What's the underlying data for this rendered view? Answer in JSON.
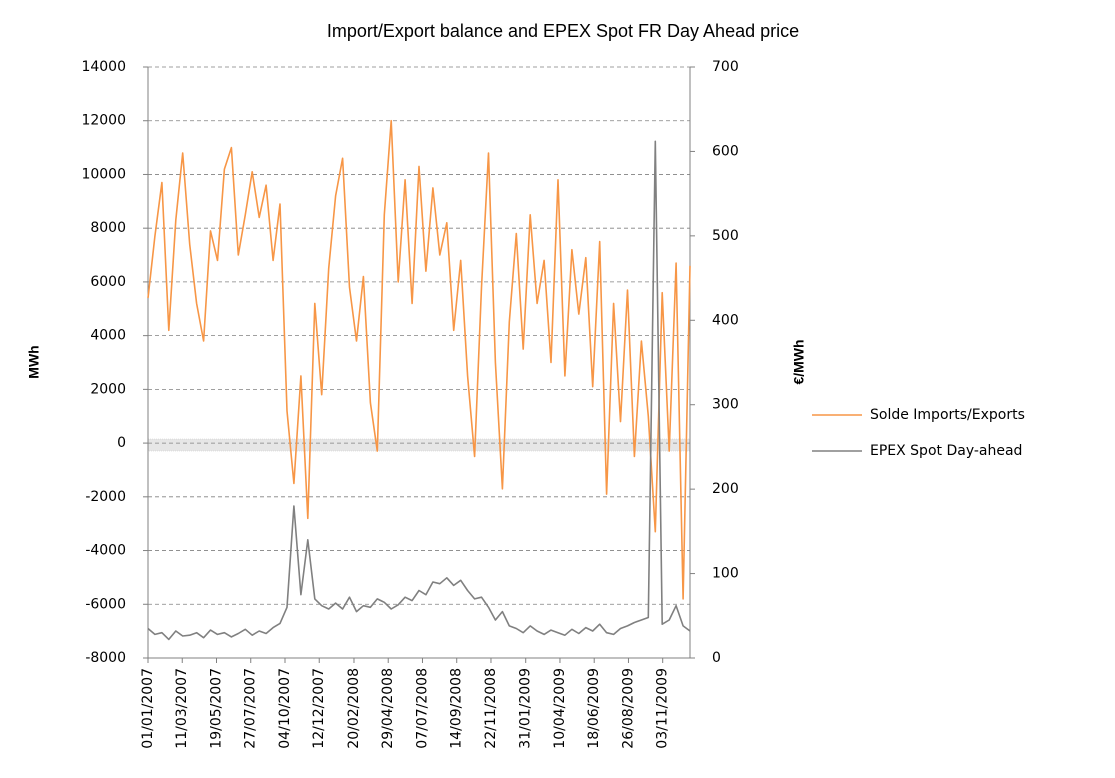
{
  "chart_data": {
    "type": "line",
    "title": "Import/Export balance and EPEX Spot FR Day Ahead price",
    "y_label": "MWh",
    "y2_label": "€/MWh",
    "x": [
      "01/01/2007",
      "15/01/2007",
      "29/01/2007",
      "12/02/2007",
      "26/02/2007",
      "12/03/2007",
      "26/03/2007",
      "09/04/2007",
      "23/04/2007",
      "07/05/2007",
      "21/05/2007",
      "04/06/2007",
      "18/06/2007",
      "02/07/2007",
      "16/07/2007",
      "30/07/2007",
      "13/08/2007",
      "27/08/2007",
      "10/09/2007",
      "24/09/2007",
      "08/10/2007",
      "22/10/2007",
      "05/11/2007",
      "19/11/2007",
      "03/12/2007",
      "17/12/2007",
      "31/12/2007",
      "14/01/2008",
      "28/01/2008",
      "11/02/2008",
      "25/02/2008",
      "10/03/2008",
      "24/03/2008",
      "07/04/2008",
      "21/04/2008",
      "05/05/2008",
      "19/05/2008",
      "02/06/2008",
      "16/06/2008",
      "30/06/2008",
      "14/07/2008",
      "28/07/2008",
      "11/08/2008",
      "25/08/2008",
      "08/09/2008",
      "22/09/2008",
      "06/10/2008",
      "20/10/2008",
      "03/11/2008",
      "17/11/2008",
      "01/12/2008",
      "15/12/2008",
      "29/12/2008",
      "12/01/2009",
      "26/01/2009",
      "09/02/2009",
      "23/02/2009",
      "09/03/2009",
      "23/03/2009",
      "06/04/2009",
      "20/04/2009",
      "04/05/2009",
      "18/05/2009",
      "01/06/2009",
      "15/06/2009",
      "29/06/2009",
      "13/07/2009",
      "27/07/2009",
      "10/08/2009",
      "24/08/2009",
      "07/09/2009",
      "21/09/2009",
      "05/10/2009",
      "19/10/2009",
      "02/11/2009",
      "16/11/2009",
      "30/11/2009",
      "14/12/2009",
      "28/12/2009"
    ],
    "series": [
      {
        "name": "Solde Imports/Exports",
        "color": "#f79646",
        "values": [
          5400,
          7700,
          9700,
          4200,
          8300,
          10800,
          7400,
          5200,
          3800,
          7900,
          6800,
          10200,
          11000,
          7000,
          8500,
          10100,
          8400,
          9600,
          6800,
          8900,
          1200,
          -1500,
          2500,
          -2800,
          5200,
          1800,
          6500,
          9200,
          10600,
          5800,
          3800,
          6200,
          1500,
          -300,
          8500,
          12000,
          6000,
          9800,
          5200,
          10300,
          6400,
          9500,
          7000,
          8200,
          4200,
          6800,
          2500,
          -500,
          5800,
          10800,
          3000,
          -1700,
          4500,
          7800,
          3500,
          8500,
          5200,
          6800,
          3000,
          9800,
          2500,
          7200,
          4800,
          6900,
          2100,
          7500,
          -1900,
          5200,
          800,
          5700,
          -500,
          3800,
          1000,
          -3300,
          5600,
          -300,
          6700,
          -5800,
          6600
        ]
      },
      {
        "name": "EPEX Spot Day-ahead",
        "color": "#808080",
        "axis": "y2",
        "values": [
          35,
          28,
          30,
          22,
          32,
          26,
          27,
          30,
          24,
          33,
          28,
          30,
          25,
          29,
          34,
          27,
          32,
          29,
          36,
          41,
          60,
          180,
          75,
          140,
          70,
          62,
          58,
          65,
          58,
          72,
          55,
          62,
          60,
          70,
          66,
          58,
          63,
          72,
          68,
          80,
          75,
          90,
          88,
          95,
          86,
          92,
          80,
          70,
          72,
          60,
          45,
          55,
          38,
          35,
          30,
          38,
          32,
          28,
          33,
          30,
          27,
          34,
          29,
          36,
          32,
          40,
          30,
          28,
          35,
          38,
          42,
          45,
          48,
          612,
          40,
          45,
          62,
          38,
          32
        ]
      }
    ],
    "xticks": [
      "01/01/2007",
      "11/03/2007",
      "19/05/2007",
      "27/07/2007",
      "04/10/2007",
      "12/12/2007",
      "20/02/2008",
      "29/04/2008",
      "07/07/2008",
      "14/09/2008",
      "22/11/2008",
      "31/01/2009",
      "10/04/2009",
      "18/06/2009",
      "26/08/2009",
      "03/11/2009"
    ],
    "ylim": [
      -8000,
      14000
    ],
    "yticks": [
      -8000,
      -6000,
      -4000,
      -2000,
      0,
      2000,
      4000,
      6000,
      8000,
      10000,
      12000,
      14000
    ],
    "y2lim": [
      0,
      700
    ],
    "y2ticks": [
      0,
      100,
      200,
      300,
      400,
      500,
      600,
      700
    ],
    "grid": true,
    "legend": "right"
  }
}
